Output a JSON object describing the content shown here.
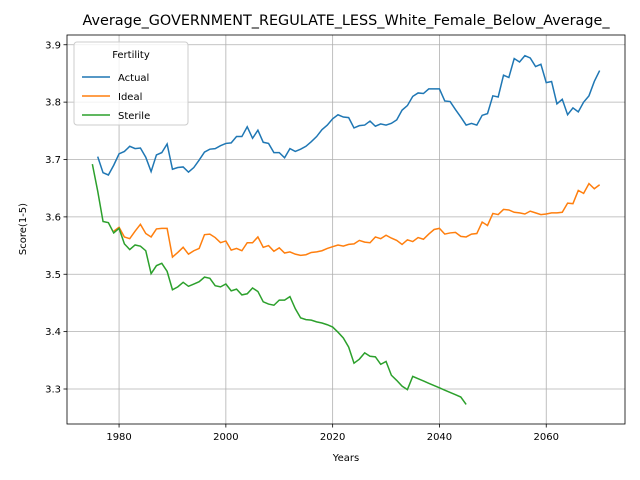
{
  "chart_data": {
    "type": "line",
    "title": "Average_GOVERNMENT_REGULATE_LESS_White_Female_Below_Average_",
    "x_label": "Years",
    "y_label": "Score(1-5)",
    "legend_title": "Fertility",
    "legend_position": "upper left",
    "grid": true,
    "xlim": [
      1970.25,
      2074.75
    ],
    "xticks": [
      1980,
      2000,
      2020,
      2040,
      2060
    ],
    "ylim": [
      3.239,
      3.917
    ],
    "yticks": [
      3.3,
      3.4,
      3.5,
      3.6,
      3.7,
      3.8,
      3.9
    ],
    "x": [
      1975,
      1976,
      1977,
      1978,
      1979,
      1980,
      1981,
      1982,
      1983,
      1984,
      1985,
      1986,
      1987,
      1988,
      1989,
      1990,
      1991,
      1992,
      1993,
      1994,
      1995,
      1996,
      1997,
      1998,
      1999,
      2000,
      2001,
      2002,
      2003,
      2004,
      2005,
      2006,
      2007,
      2008,
      2009,
      2010,
      2011,
      2012,
      2013,
      2014,
      2015,
      2016,
      2017,
      2018,
      2019,
      2020,
      2021,
      2022,
      2023,
      2024,
      2025,
      2026,
      2027,
      2028,
      2029,
      2030,
      2031,
      2032,
      2033,
      2034,
      2035,
      2036,
      2037,
      2038,
      2039,
      2040,
      2041,
      2042,
      2043,
      2044,
      2045,
      2046,
      2047,
      2048,
      2049,
      2050,
      2051,
      2052,
      2053,
      2054,
      2055,
      2056,
      2057,
      2058,
      2059,
      2060,
      2061,
      2062,
      2063,
      2064,
      2065,
      2066,
      2067,
      2068,
      2069,
      2070
    ],
    "series": [
      {
        "name": "Actual",
        "color": "#1f77b4",
        "values": [
          null,
          3.705,
          3.677,
          3.673,
          3.69,
          3.71,
          3.714,
          3.723,
          3.719,
          3.72,
          3.704,
          3.679,
          3.708,
          3.712,
          3.727,
          3.683,
          3.686,
          3.687,
          3.678,
          3.686,
          3.699,
          3.713,
          3.718,
          3.719,
          3.724,
          3.728,
          3.729,
          3.74,
          3.74,
          3.757,
          3.737,
          3.751,
          3.73,
          3.728,
          3.712,
          3.712,
          3.703,
          3.719,
          3.714,
          3.718,
          3.723,
          3.731,
          3.74,
          3.752,
          3.76,
          3.771,
          3.778,
          3.774,
          3.773,
          3.755,
          3.759,
          3.76,
          3.767,
          3.758,
          3.762,
          3.76,
          3.763,
          3.769,
          3.786,
          3.794,
          3.81,
          3.816,
          3.815,
          3.823,
          3.823,
          3.823,
          3.802,
          3.801,
          3.787,
          3.774,
          3.76,
          3.763,
          3.76,
          3.777,
          3.78,
          3.811,
          3.809,
          3.847,
          3.843,
          3.876,
          3.87,
          3.881,
          3.877,
          3.862,
          3.866,
          3.834,
          3.836,
          3.797,
          3.805,
          3.778,
          3.79,
          3.783,
          3.8,
          3.811,
          3.836,
          3.855
        ]
      },
      {
        "name": "Ideal",
        "color": "#ff7f0e",
        "values": [
          null,
          null,
          null,
          null,
          3.575,
          3.582,
          3.565,
          3.562,
          3.575,
          3.587,
          3.571,
          3.565,
          3.579,
          3.58,
          3.58,
          3.53,
          3.538,
          3.547,
          3.535,
          3.541,
          3.545,
          3.569,
          3.57,
          3.564,
          3.555,
          3.558,
          3.542,
          3.545,
          3.541,
          3.555,
          3.555,
          3.565,
          3.547,
          3.55,
          3.54,
          3.546,
          3.537,
          3.539,
          3.535,
          3.533,
          3.534,
          3.538,
          3.539,
          3.541,
          3.545,
          3.548,
          3.551,
          3.549,
          3.552,
          3.553,
          3.559,
          3.556,
          3.555,
          3.565,
          3.562,
          3.568,
          3.563,
          3.559,
          3.552,
          3.56,
          3.557,
          3.564,
          3.561,
          3.57,
          3.578,
          3.58,
          3.57,
          3.572,
          3.573,
          3.566,
          3.565,
          3.57,
          3.571,
          3.591,
          3.585,
          3.606,
          3.604,
          3.613,
          3.612,
          3.608,
          3.607,
          3.605,
          3.61,
          3.607,
          3.604,
          3.605,
          3.607,
          3.607,
          3.608,
          3.624,
          3.623,
          3.646,
          3.641,
          3.658,
          3.649,
          3.656
        ]
      },
      {
        "name": "Sterile",
        "color": "#2ca02c",
        "values": [
          3.692,
          3.645,
          3.592,
          3.59,
          3.572,
          3.58,
          3.553,
          3.543,
          3.551,
          3.549,
          3.541,
          3.501,
          3.515,
          3.519,
          3.505,
          3.473,
          3.478,
          3.486,
          3.479,
          3.483,
          3.487,
          3.495,
          3.493,
          3.48,
          3.478,
          3.483,
          3.471,
          3.474,
          3.464,
          3.466,
          3.476,
          3.47,
          3.452,
          3.448,
          3.446,
          3.455,
          3.455,
          3.461,
          3.44,
          3.424,
          3.421,
          3.42,
          3.417,
          3.415,
          3.412,
          3.408,
          3.399,
          3.389,
          3.373,
          3.345,
          3.352,
          3.363,
          3.357,
          3.356,
          3.343,
          3.348,
          3.324,
          3.315,
          3.305,
          3.299,
          3.322,
          3.318,
          3.314,
          3.31,
          3.306,
          3.302,
          3.298,
          3.294,
          3.29,
          3.286,
          3.273,
          null,
          null,
          null,
          null,
          null,
          null,
          null,
          null,
          null,
          null,
          null,
          null,
          null,
          null,
          null,
          null,
          null,
          null,
          null,
          null,
          null,
          null,
          null,
          null,
          null
        ]
      }
    ]
  }
}
